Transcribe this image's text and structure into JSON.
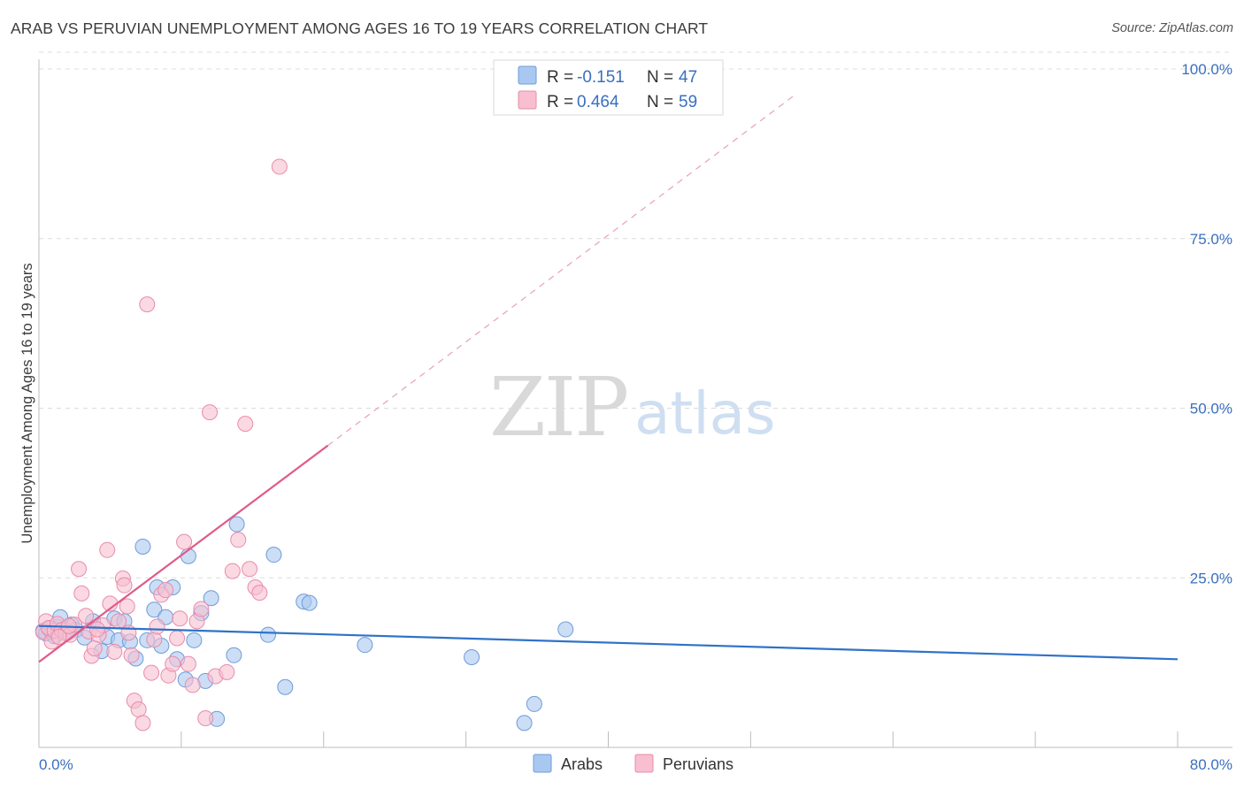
{
  "title": "ARAB VS PERUVIAN UNEMPLOYMENT AMONG AGES 16 TO 19 YEARS CORRELATION CHART",
  "source": "Source: ZipAtlas.com",
  "watermark": {
    "zip": "ZIP",
    "atlas": "atlas"
  },
  "colors": {
    "arab_fill": "#a9c8f0",
    "arab_stroke": "#6f9bd8",
    "arab_line": "#2f72c8",
    "peru_fill": "#f7bfd0",
    "peru_stroke": "#e98bab",
    "peru_line": "#e05a8a",
    "tick_text": "#3a6fbf",
    "grid": "#dcdcdc"
  },
  "legend": {
    "r_label": "R =",
    "n_label": "N =",
    "rows": [
      {
        "name": "Arabs",
        "r": "-0.151",
        "n": "47"
      },
      {
        "name": "Peruvians",
        "r": "0.464",
        "n": "59"
      }
    ]
  },
  "chart_data": {
    "type": "scatter",
    "title": "ARAB VS PERUVIAN UNEMPLOYMENT AMONG AGES 16 TO 19 YEARS CORRELATION CHART",
    "xlabel": "",
    "ylabel": "Unemployment Among Ages 16 to 19 years",
    "xlim": [
      0,
      80
    ],
    "ylim": [
      0,
      100
    ],
    "x_tick_labels": [
      "0.0%",
      "80.0%"
    ],
    "y_ticks": [
      25,
      50,
      75,
      100
    ],
    "y_tick_labels": [
      "25.0%",
      "50.0%",
      "75.0%",
      "100.0%"
    ],
    "series": [
      {
        "name": "Arabs",
        "points": [
          [
            0.3,
            17.2
          ],
          [
            0.5,
            16.8
          ],
          [
            0.7,
            17.5
          ],
          [
            0.9,
            17.0
          ],
          [
            1.1,
            16.4
          ],
          [
            1.3,
            17.8
          ],
          [
            1.5,
            19.2
          ],
          [
            1.8,
            17.4
          ],
          [
            2.0,
            16.9
          ],
          [
            2.3,
            18.1
          ],
          [
            2.6,
            17.3
          ],
          [
            3.2,
            16.2
          ],
          [
            3.8,
            18.6
          ],
          [
            4.4,
            14.2
          ],
          [
            4.8,
            16.3
          ],
          [
            5.3,
            19.0
          ],
          [
            5.6,
            15.8
          ],
          [
            6.0,
            18.6
          ],
          [
            6.4,
            15.6
          ],
          [
            6.8,
            13.1
          ],
          [
            7.3,
            29.6
          ],
          [
            7.6,
            15.8
          ],
          [
            8.1,
            20.3
          ],
          [
            8.3,
            23.6
          ],
          [
            8.6,
            15.0
          ],
          [
            8.9,
            19.2
          ],
          [
            9.4,
            23.6
          ],
          [
            9.7,
            13.0
          ],
          [
            10.3,
            10.0
          ],
          [
            10.5,
            28.2
          ],
          [
            10.9,
            15.8
          ],
          [
            11.4,
            19.8
          ],
          [
            11.7,
            9.8
          ],
          [
            12.1,
            22.0
          ],
          [
            12.5,
            4.2
          ],
          [
            13.7,
            13.6
          ],
          [
            13.9,
            32.9
          ],
          [
            16.1,
            16.6
          ],
          [
            16.5,
            28.4
          ],
          [
            17.3,
            8.9
          ],
          [
            18.6,
            21.5
          ],
          [
            19.0,
            21.3
          ],
          [
            22.9,
            15.1
          ],
          [
            30.4,
            13.3
          ],
          [
            34.1,
            3.6
          ],
          [
            34.8,
            6.4
          ],
          [
            37.0,
            17.4
          ]
        ],
        "trend": {
          "x": [
            0,
            80
          ],
          "y": [
            17.9,
            13.0
          ]
        }
      },
      {
        "name": "Peruvians",
        "points": [
          [
            0.3,
            17.0
          ],
          [
            0.5,
            18.6
          ],
          [
            0.7,
            17.6
          ],
          [
            0.9,
            15.6
          ],
          [
            1.1,
            17.2
          ],
          [
            1.3,
            18.2
          ],
          [
            1.6,
            17.3
          ],
          [
            1.9,
            16.8
          ],
          [
            2.2,
            16.6
          ],
          [
            2.5,
            18.1
          ],
          [
            2.8,
            26.3
          ],
          [
            3.0,
            22.7
          ],
          [
            3.3,
            19.4
          ],
          [
            3.5,
            17.1
          ],
          [
            3.7,
            13.5
          ],
          [
            3.9,
            14.6
          ],
          [
            4.2,
            16.6
          ],
          [
            4.5,
            18.0
          ],
          [
            4.8,
            29.1
          ],
          [
            5.0,
            21.2
          ],
          [
            5.3,
            14.1
          ],
          [
            5.6,
            18.6
          ],
          [
            5.9,
            24.9
          ],
          [
            6.0,
            23.9
          ],
          [
            6.2,
            20.8
          ],
          [
            6.5,
            13.6
          ],
          [
            6.7,
            6.9
          ],
          [
            7.0,
            5.6
          ],
          [
            7.3,
            3.6
          ],
          [
            7.6,
            65.3
          ],
          [
            7.9,
            11.0
          ],
          [
            8.1,
            15.9
          ],
          [
            8.3,
            17.8
          ],
          [
            8.6,
            22.5
          ],
          [
            8.9,
            23.2
          ],
          [
            9.1,
            10.6
          ],
          [
            9.4,
            12.3
          ],
          [
            9.7,
            16.1
          ],
          [
            9.9,
            19.0
          ],
          [
            10.2,
            30.3
          ],
          [
            10.5,
            12.3
          ],
          [
            10.8,
            9.2
          ],
          [
            11.1,
            18.6
          ],
          [
            11.4,
            20.4
          ],
          [
            11.7,
            4.3
          ],
          [
            12.0,
            49.4
          ],
          [
            12.4,
            10.5
          ],
          [
            13.2,
            11.1
          ],
          [
            13.6,
            26.0
          ],
          [
            14.0,
            30.6
          ],
          [
            14.5,
            47.7
          ],
          [
            14.8,
            26.3
          ],
          [
            15.2,
            23.6
          ],
          [
            15.5,
            22.8
          ],
          [
            16.9,
            85.6
          ],
          [
            2.1,
            17.9
          ],
          [
            1.4,
            16.3
          ],
          [
            4.1,
            17.4
          ],
          [
            6.3,
            16.9
          ]
        ],
        "trend": {
          "x": [
            0,
            20.3
          ],
          "y": [
            12.6,
            44.5
          ]
        },
        "trend_extension": {
          "x": [
            20.3,
            53.0
          ],
          "y": [
            44.5,
            96.0
          ]
        }
      }
    ]
  }
}
